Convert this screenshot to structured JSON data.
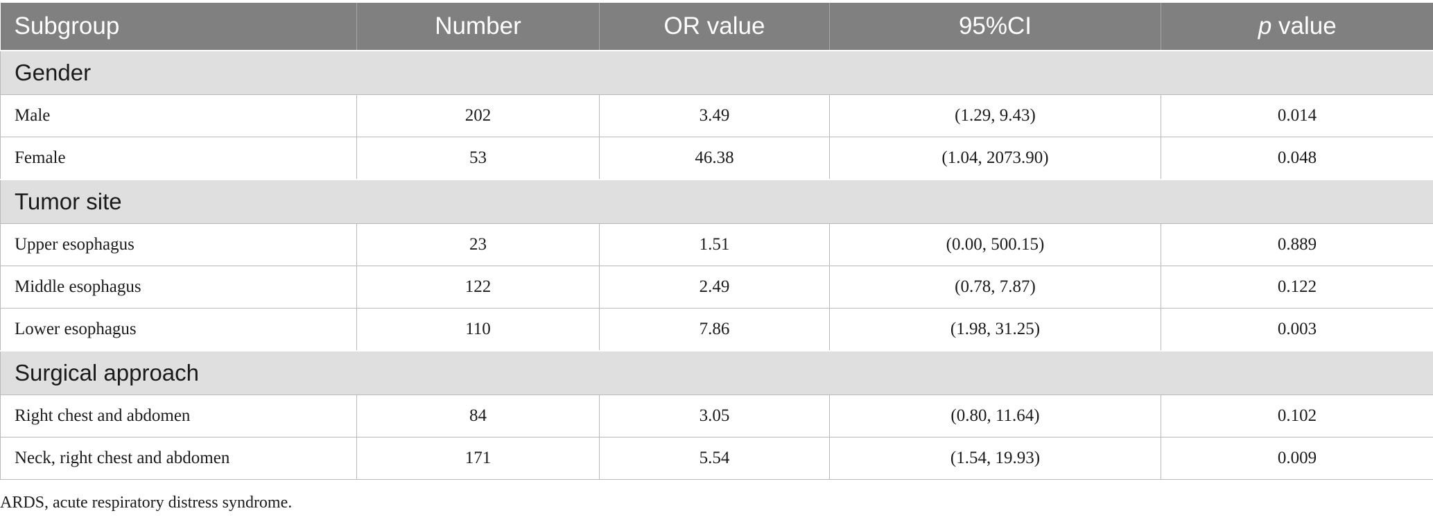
{
  "header": {
    "subgroup": "Subgroup",
    "number": "Number",
    "or_value": "OR value",
    "ci": "95%CI",
    "p_italic": "p",
    "p_rest": " value"
  },
  "groups": [
    {
      "title": "Gender",
      "rows": [
        {
          "label": "Male",
          "number": "202",
          "or": "3.49",
          "ci": "(1.29, 9.43)",
          "p": "0.014"
        },
        {
          "label": "Female",
          "number": "53",
          "or": "46.38",
          "ci": "(1.04, 2073.90)",
          "p": "0.048"
        }
      ]
    },
    {
      "title": "Tumor site",
      "rows": [
        {
          "label": "Upper esophagus",
          "number": "23",
          "or": "1.51",
          "ci": "(0.00, 500.15)",
          "p": "0.889"
        },
        {
          "label": "Middle esophagus",
          "number": "122",
          "or": "2.49",
          "ci": "(0.78, 7.87)",
          "p": "0.122"
        },
        {
          "label": "Lower esophagus",
          "number": "110",
          "or": "7.86",
          "ci": "(1.98, 31.25)",
          "p": "0.003"
        }
      ]
    },
    {
      "title": "Surgical approach",
      "rows": [
        {
          "label": "Right chest and abdomen",
          "number": "84",
          "or": "3.05",
          "ci": "(0.80, 11.64)",
          "p": "0.102"
        },
        {
          "label": "Neck, right chest and abdomen",
          "number": "171",
          "or": "5.54",
          "ci": "(1.54, 19.93)",
          "p": "0.009"
        }
      ]
    }
  ],
  "footnote": "ARDS, acute respiratory distress syndrome."
}
